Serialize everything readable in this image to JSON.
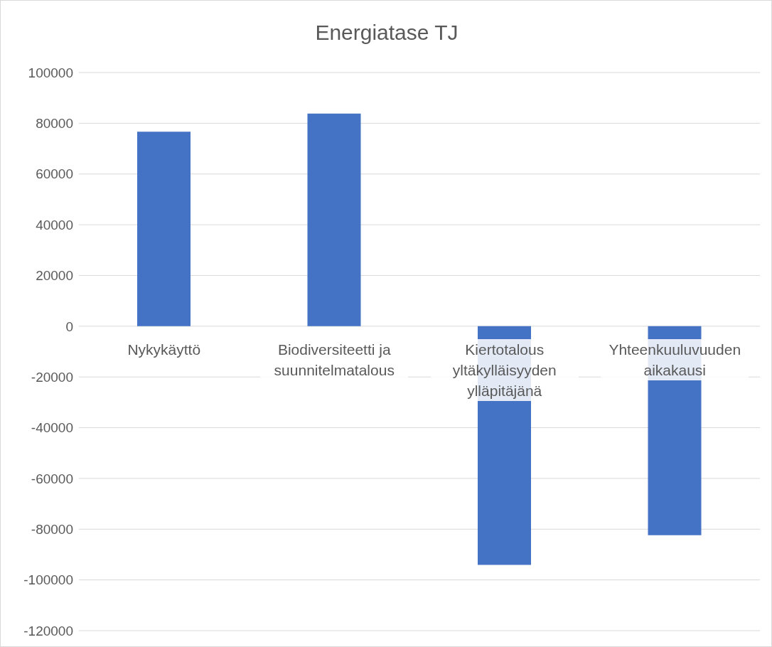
{
  "chart_data": {
    "type": "bar",
    "title": "Energiatase TJ",
    "categories": [
      "Nykykäyttö",
      "Biodiversiteetti ja suunnitelmatalous",
      "Kiertotalous yltäkylläisyyden ylläpitäjänä",
      "Yhteenkuuluvuuden aikakausi"
    ],
    "values": [
      76700,
      83800,
      -94100,
      -82400
    ],
    "color": "#4472c4",
    "ylim": [
      -120000,
      100000
    ],
    "yticks": [
      -120000,
      -100000,
      -80000,
      -60000,
      -40000,
      -20000,
      0,
      20000,
      40000,
      60000,
      80000,
      100000
    ],
    "grid": "y"
  }
}
